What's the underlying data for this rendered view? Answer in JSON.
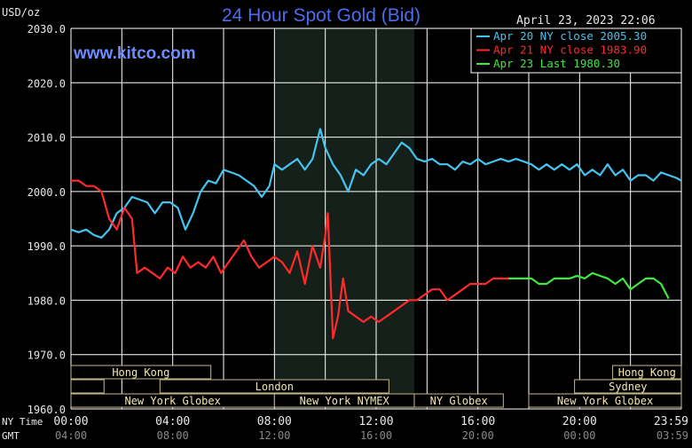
{
  "chart_data": {
    "type": "line",
    "title": "24 Hour Spot Gold (Bid)",
    "website": "www.kitco.com",
    "timestamp": "April 23, 2023 22:06",
    "ylabel": "USD/oz",
    "ylim": [
      1960,
      2030
    ],
    "y_ticks": [
      "1960.0",
      "1970.0",
      "1980.0",
      "1990.0",
      "2000.0",
      "2010.0",
      "2020.0",
      "2030.0"
    ],
    "x_axis_rows": [
      {
        "label": "NY Time",
        "ticks": [
          "00:00",
          "04:00",
          "08:00",
          "12:00",
          "16:00",
          "20:00",
          "23:59"
        ]
      },
      {
        "label": "GMT",
        "ticks": [
          "04:00",
          "08:00",
          "12:00",
          "16:00",
          "20:00",
          "00:00",
          "03:59"
        ]
      }
    ],
    "xlim": [
      0,
      24
    ],
    "grid": true,
    "legend_position": "top-right",
    "colors": {
      "background": "#000000",
      "grid": "#ffffff",
      "shaded_session": "#15201a",
      "title": "#4d6cf0",
      "website": "#6e8cff",
      "session_text": "#f2e6b0",
      "session_border": "#c8b888"
    },
    "sessions": [
      {
        "name": "Hong Kong",
        "start": 0,
        "end": 5.5,
        "row": 0
      },
      {
        "name": "",
        "start": 0,
        "end": 1.3,
        "row": 1
      },
      {
        "name": "London",
        "start": 3.5,
        "end": 12.5,
        "row": 1
      },
      {
        "name": "New York Globex",
        "start": 0,
        "end": 8.0,
        "row": 2
      },
      {
        "name": "New York NYMEX",
        "start": 8.0,
        "end": 13.5,
        "row": 2
      },
      {
        "name": "NY Globex",
        "start": 13.5,
        "end": 17.0,
        "row": 2
      },
      {
        "name": "New York Globex",
        "start": 18.0,
        "end": 24.0,
        "row": 2
      },
      {
        "name": "Hong Kong",
        "start": 21.3,
        "end": 24.0,
        "row": 0
      },
      {
        "name": "Sydney",
        "start": 19.8,
        "end": 24.0,
        "row": 1
      }
    ],
    "shaded_ranges": [
      [
        8.0,
        13.5
      ]
    ],
    "series": [
      {
        "name": "Apr 20 NY close 2005.30",
        "color": "#44c4ee",
        "x": [
          0,
          0.3,
          0.6,
          0.9,
          1.2,
          1.5,
          1.8,
          2.1,
          2.4,
          2.7,
          3.0,
          3.3,
          3.6,
          3.9,
          4.2,
          4.5,
          4.8,
          5.1,
          5.4,
          5.7,
          6.0,
          6.3,
          6.6,
          6.9,
          7.2,
          7.5,
          7.8,
          8.0,
          8.3,
          8.6,
          8.9,
          9.2,
          9.5,
          9.8,
          10.0,
          10.3,
          10.6,
          10.9,
          11.2,
          11.5,
          11.8,
          12.1,
          12.4,
          12.7,
          13.0,
          13.3,
          13.6,
          13.9,
          14.2,
          14.5,
          14.8,
          15.1,
          15.4,
          15.7,
          16.0,
          16.3,
          16.6,
          16.9,
          17.2,
          17.5,
          17.8,
          18.1,
          18.4,
          18.7,
          19.0,
          19.3,
          19.6,
          19.9,
          20.2,
          20.5,
          20.8,
          21.1,
          21.4,
          21.7,
          22.0,
          22.3,
          22.6,
          22.9,
          23.2,
          23.5,
          23.8,
          24.0
        ],
        "y": [
          1993,
          1992.5,
          1993,
          1992,
          1991.5,
          1993,
          1996,
          1997,
          1999,
          1998.5,
          1998,
          1996,
          1998,
          1998,
          1997,
          1993,
          1996,
          2000,
          2002,
          2001.5,
          2004,
          2003.5,
          2003,
          2002,
          2001,
          1999,
          2001,
          2005,
          2004,
          2005,
          2006,
          2004,
          2006,
          2011.5,
          2008,
          2005,
          2003,
          2000,
          2004,
          2003,
          2005,
          2006,
          2005,
          2007,
          2009,
          2008,
          2006,
          2005.5,
          2006,
          2005,
          2005,
          2004,
          2005.5,
          2005,
          2006,
          2005,
          2005.5,
          2006,
          2005.5,
          2006,
          2005.5,
          2005,
          2004,
          2005,
          2004,
          2005,
          2004,
          2005,
          2003,
          2004,
          2003,
          2005,
          2003,
          2004,
          2002,
          2003,
          2003,
          2002,
          2003.5,
          2003,
          2002.5,
          2002
        ]
      },
      {
        "name": "Apr 21 NY close 1983.90",
        "color": "#ff2a2a",
        "x": [
          0,
          0.3,
          0.6,
          0.9,
          1.2,
          1.5,
          1.8,
          2.1,
          2.4,
          2.6,
          2.9,
          3.2,
          3.5,
          3.8,
          4.1,
          4.4,
          4.7,
          5.0,
          5.3,
          5.6,
          5.9,
          6.2,
          6.5,
          6.8,
          7.1,
          7.4,
          7.7,
          8.0,
          8.3,
          8.6,
          8.9,
          9.2,
          9.5,
          9.8,
          10.0,
          10.1,
          10.3,
          10.5,
          10.7,
          10.9,
          11.2,
          11.5,
          11.8,
          12.1,
          12.4,
          12.7,
          13.0,
          13.3,
          13.6,
          13.9,
          14.2,
          14.5,
          14.8,
          15.1,
          15.4,
          15.7,
          16.0,
          16.3,
          16.6,
          16.9,
          17.2
        ],
        "y": [
          2002,
          2002,
          2001,
          2001,
          2000,
          1995,
          1993,
          1997,
          1995,
          1985,
          1986,
          1985,
          1984,
          1986,
          1985,
          1988,
          1986,
          1987,
          1986,
          1988,
          1985,
          1987,
          1989,
          1991,
          1988,
          1986,
          1987,
          1988,
          1987,
          1985,
          1989,
          1983,
          1990,
          1986,
          1992,
          1996,
          1973,
          1977,
          1984,
          1978,
          1977,
          1976,
          1977,
          1976,
          1977,
          1978,
          1979,
          1980,
          1980,
          1981,
          1982,
          1982,
          1980,
          1981,
          1982,
          1983,
          1983,
          1983,
          1984,
          1984,
          1984
        ]
      },
      {
        "name": "Apr 23 Last 1980.30",
        "color": "#3ee83e",
        "x": [
          17.2,
          17.5,
          17.8,
          18.1,
          18.4,
          18.7,
          19.0,
          19.3,
          19.6,
          19.9,
          20.2,
          20.5,
          20.8,
          21.1,
          21.4,
          21.7,
          22.0,
          22.3,
          22.6,
          22.9,
          23.2,
          23.5
        ],
        "y": [
          1984,
          1984,
          1984,
          1984,
          1983,
          1983,
          1984,
          1984,
          1984,
          1984.5,
          1984,
          1985,
          1984.5,
          1984,
          1983,
          1984,
          1982,
          1983,
          1984,
          1984,
          1983,
          1980.3
        ]
      }
    ]
  }
}
